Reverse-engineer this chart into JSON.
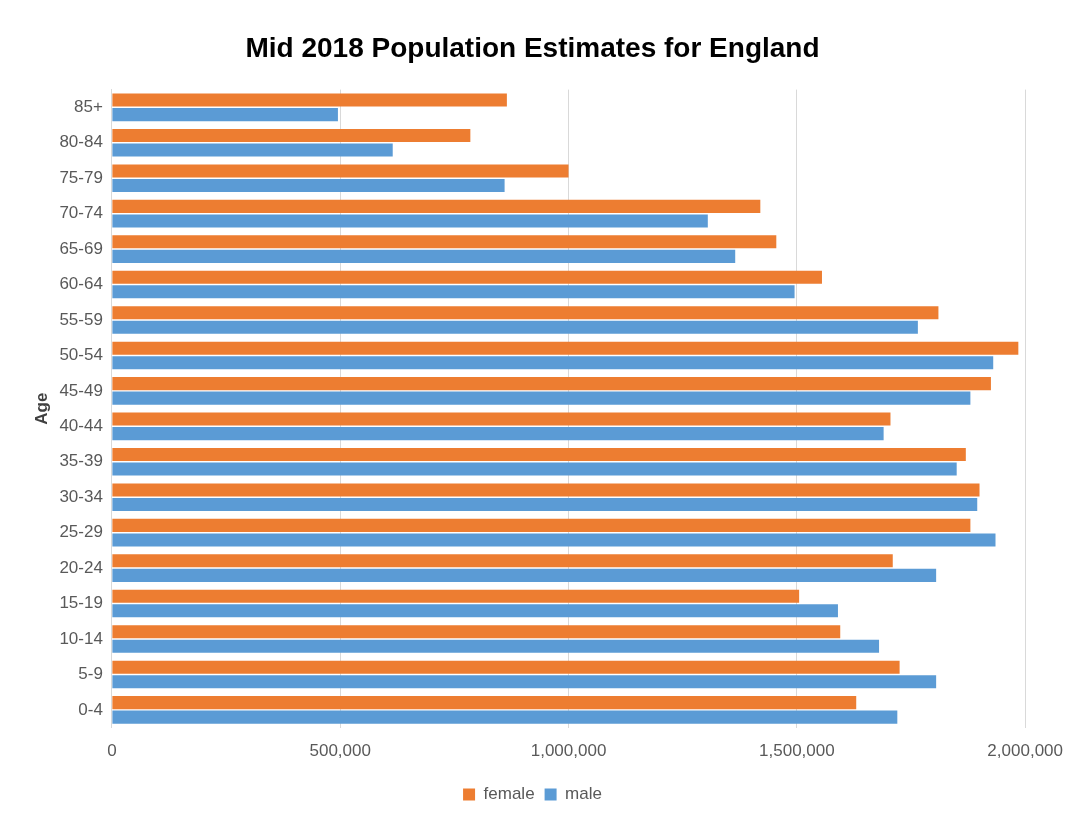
{
  "chart_data": {
    "type": "bar",
    "orientation": "horizontal",
    "title": "Mid 2018 Population Estimates for England",
    "ylabel": "Age",
    "categories": [
      "85+",
      "80-84",
      "75-79",
      "70-74",
      "65-69",
      "60-64",
      "55-59",
      "50-54",
      "45-49",
      "40-44",
      "35-39",
      "30-34",
      "25-29",
      "20-24",
      "15-19",
      "10-14",
      "5-9",
      "0-4"
    ],
    "series": [
      {
        "name": "female",
        "color": "#ed7d31",
        "values": [
          865000,
          785000,
          1000000,
          1420000,
          1455000,
          1555000,
          1810000,
          1985000,
          1925000,
          1705000,
          1870000,
          1900000,
          1880000,
          1710000,
          1505000,
          1595000,
          1725000,
          1630000
        ]
      },
      {
        "name": "male",
        "color": "#5b9bd5",
        "values": [
          495000,
          615000,
          860000,
          1305000,
          1365000,
          1495000,
          1765000,
          1930000,
          1880000,
          1690000,
          1850000,
          1895000,
          1935000,
          1805000,
          1590000,
          1680000,
          1805000,
          1720000
        ]
      }
    ],
    "xlim": [
      0,
      2000000
    ],
    "xticks": [
      {
        "value": 0,
        "label": "0"
      },
      {
        "value": 500000,
        "label": "500,000"
      },
      {
        "value": 1000000,
        "label": "1,000,000"
      },
      {
        "value": 1500000,
        "label": "1,500,000"
      },
      {
        "value": 2000000,
        "label": "2,000,000"
      }
    ],
    "grid": "x",
    "legend": "bottom"
  }
}
